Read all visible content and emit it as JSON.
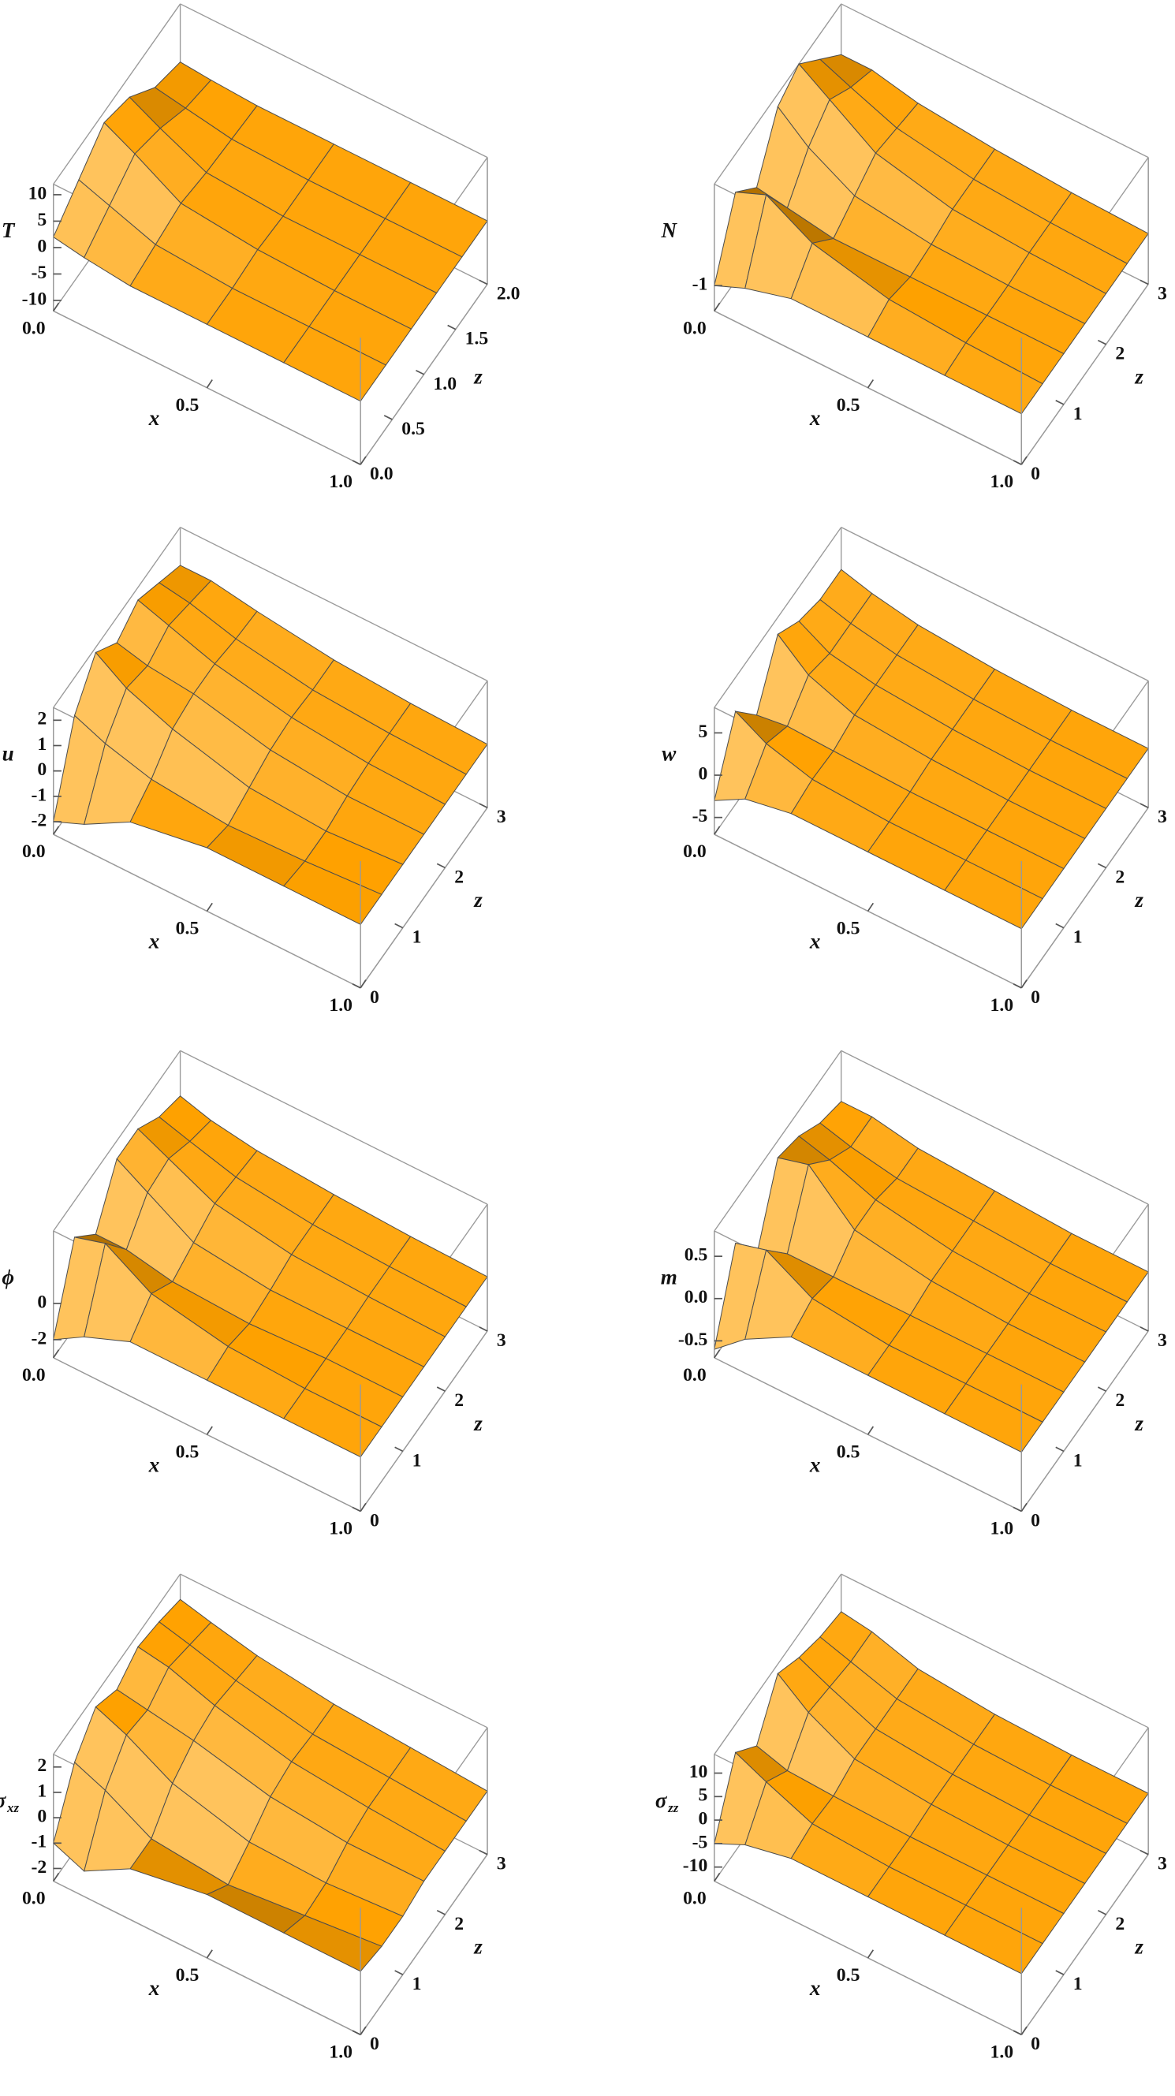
{
  "chart_data": [
    {
      "type": "surface",
      "xlabel": "x",
      "zlabel": "z",
      "vlabel": "T",
      "x": [
        0,
        0.1,
        0.25,
        0.5,
        0.75,
        1
      ],
      "z": [
        0,
        0.4,
        0.8,
        1.2,
        1.6,
        2
      ],
      "values": [
        [
          2,
          6,
          10,
          8,
          3,
          1
        ],
        [
          1,
          4,
          7,
          5,
          2,
          0.5
        ],
        [
          0,
          1,
          2,
          1,
          0.5,
          0
        ],
        [
          0,
          0,
          0.5,
          0,
          0,
          0
        ],
        [
          0,
          0,
          0,
          0,
          0,
          0
        ],
        [
          0,
          0,
          0,
          0,
          0,
          0
        ]
      ],
      "xlim": [
        0,
        1
      ],
      "zlim": [
        0,
        2
      ],
      "vlim": [
        -12,
        12
      ],
      "xticks": [
        {
          "value": 0,
          "label": "0.0"
        },
        {
          "value": 0.5,
          "label": "0.5"
        },
        {
          "value": 1,
          "label": "1.0"
        }
      ],
      "zticks": [
        {
          "value": 0,
          "label": "0.0"
        },
        {
          "value": 0.5,
          "label": "0.5"
        },
        {
          "value": 1,
          "label": "1.0"
        },
        {
          "value": 1.5,
          "label": "1.5"
        },
        {
          "value": 2,
          "label": "2.0"
        }
      ],
      "vticks": [
        10,
        5,
        0,
        -5,
        -10
      ],
      "color": "#f5a623"
    },
    {
      "type": "surface",
      "xlabel": "x",
      "zlabel": "z",
      "vlabel": "N",
      "x": [
        0,
        0.1,
        0.25,
        0.5,
        0.75,
        1
      ],
      "z": [
        0,
        0.5,
        1,
        1.5,
        2,
        2.5,
        3
      ],
      "values": [
        [
          -1,
          1.5,
          0.5,
          2.5,
          3,
          2,
          1
        ],
        [
          -0.5,
          2,
          0.3,
          1.5,
          2.2,
          1.5,
          1
        ],
        [
          0,
          1,
          0,
          0.5,
          1,
          0.8,
          0.6
        ],
        [
          0,
          0.3,
          0,
          0.1,
          0.3,
          0.3,
          0.3
        ],
        [
          0,
          0.1,
          0,
          0,
          0.1,
          0.1,
          0.1
        ],
        [
          0,
          0,
          0,
          0,
          0,
          0,
          0
        ]
      ],
      "xlim": [
        0,
        1
      ],
      "zlim": [
        0,
        3
      ],
      "vlim": [
        -2,
        3
      ],
      "xticks": [
        {
          "value": 0,
          "label": "0.0"
        },
        {
          "value": 0.5,
          "label": "0.5"
        },
        {
          "value": 1,
          "label": "1.0"
        }
      ],
      "zticks": [
        0,
        1,
        2,
        3
      ],
      "vticks": [
        -1
      ],
      "color": "#f5a623"
    },
    {
      "type": "surface",
      "xlabel": "x",
      "zlabel": "z",
      "vlabel": "u",
      "x": [
        0,
        0.1,
        0.25,
        0.5,
        0.75,
        1
      ],
      "z": [
        0,
        0.5,
        1,
        1.5,
        2,
        2.5,
        3
      ],
      "values": [
        [
          -2,
          1,
          2.3,
          1.5,
          2,
          1.5,
          1
        ],
        [
          -1.5,
          0.5,
          1.5,
          1.2,
          1.6,
          1.3,
          1
        ],
        [
          -0.5,
          0,
          0.8,
          1,
          1,
          0.8,
          0.7
        ],
        [
          0,
          -0.3,
          0,
          0.3,
          0.4,
          0.3,
          0.3
        ],
        [
          0,
          -0.2,
          -0.2,
          0,
          0.1,
          0.1,
          0.1
        ],
        [
          0,
          0,
          0,
          0,
          0,
          0,
          0
        ]
      ],
      "xlim": [
        0,
        1
      ],
      "zlim": [
        0,
        3
      ],
      "vlim": [
        -2.5,
        2.5
      ],
      "xticks": [
        {
          "value": 0,
          "label": "0.0"
        },
        {
          "value": 0.5,
          "label": "0.5"
        },
        {
          "value": 1,
          "label": "1.0"
        }
      ],
      "zticks": [
        0,
        1,
        2,
        3
      ],
      "vticks": [
        2,
        1,
        0,
        -1,
        -2
      ],
      "color": "#f5a623"
    },
    {
      "type": "surface",
      "xlabel": "x",
      "zlabel": "z",
      "vlabel": "w",
      "x": [
        0,
        0.1,
        0.25,
        0.5,
        0.75,
        1
      ],
      "z": [
        0,
        0.5,
        1,
        1.5,
        2,
        2.5,
        3
      ],
      "values": [
        [
          -3,
          4,
          0,
          6,
          4,
          3,
          3
        ],
        [
          -1,
          2,
          0.5,
          3,
          2,
          2,
          2
        ],
        [
          0,
          0.5,
          0.3,
          1,
          1,
          1,
          1
        ],
        [
          0,
          0,
          0,
          0.3,
          0.3,
          0.3,
          0.3
        ],
        [
          0,
          0,
          0,
          0,
          0,
          0,
          0
        ],
        [
          0,
          0,
          0,
          0,
          0,
          0,
          0
        ]
      ],
      "xlim": [
        0,
        1
      ],
      "zlim": [
        0,
        3
      ],
      "vlim": [
        -7,
        8
      ],
      "xticks": [
        {
          "value": 0,
          "label": "0.0"
        },
        {
          "value": 0.5,
          "label": "0.5"
        },
        {
          "value": 1,
          "label": "1.0"
        }
      ],
      "zticks": [
        0,
        1,
        2,
        3
      ],
      "vticks": [
        5,
        0,
        -5
      ],
      "color": "#f5a623"
    },
    {
      "type": "surface",
      "xlabel": "x",
      "zlabel": "z",
      "vlabel": "ϕ",
      "x": [
        0,
        0.1,
        0.25,
        0.5,
        0.75,
        1
      ],
      "z": [
        0,
        0.5,
        1,
        1.5,
        2,
        2.5,
        3
      ],
      "values": [
        [
          -2,
          2,
          0.5,
          3,
          3,
          2,
          1.5
        ],
        [
          -1,
          2.5,
          0.5,
          2,
          2.2,
          1.5,
          1
        ],
        [
          0,
          1,
          0,
          0.5,
          1,
          0.8,
          0.6
        ],
        [
          0,
          0.2,
          -0.2,
          0,
          0.3,
          0.3,
          0.3
        ],
        [
          0,
          0,
          0,
          0,
          0.1,
          0.1,
          0.1
        ],
        [
          0,
          0,
          0,
          0,
          0,
          0,
          0
        ]
      ],
      "xlim": [
        0,
        1
      ],
      "zlim": [
        0,
        3
      ],
      "vlim": [
        -3,
        4
      ],
      "xticks": [
        {
          "value": 0,
          "label": "0.0"
        },
        {
          "value": 0.5,
          "label": "0.5"
        },
        {
          "value": 1,
          "label": "1.0"
        }
      ],
      "zticks": [
        0,
        1,
        2,
        3
      ],
      "vticks": [
        0,
        -2
      ],
      "color": "#f5a623"
    },
    {
      "type": "surface",
      "xlabel": "x",
      "zlabel": "z",
      "vlabel": "m",
      "x": [
        0,
        0.1,
        0.25,
        0.5,
        0.75,
        1
      ],
      "z": [
        0,
        0.5,
        1,
        1.5,
        2,
        2.5,
        3
      ],
      "values": [
        [
          -0.6,
          0.3,
          -0.2,
          0.6,
          0.5,
          0.3,
          0.2
        ],
        [
          -0.3,
          0.4,
          0,
          0.7,
          0.4,
          0.2,
          0.2
        ],
        [
          0,
          0.1,
          0,
          0.2,
          0.2,
          0.1,
          0.1
        ],
        [
          0,
          0,
          0,
          0.05,
          0.05,
          0.05,
          0.05
        ],
        [
          0,
          0,
          0,
          0,
          0,
          0,
          0
        ],
        [
          0,
          0,
          0,
          0,
          0,
          0,
          0
        ]
      ],
      "xlim": [
        0,
        1
      ],
      "zlim": [
        0,
        3
      ],
      "vlim": [
        -0.7,
        0.8
      ],
      "xticks": [
        {
          "value": 0,
          "label": "0.0"
        },
        {
          "value": 0.5,
          "label": "0.5"
        },
        {
          "value": 1,
          "label": "1.0"
        }
      ],
      "zticks": [
        0,
        1,
        2,
        3
      ],
      "vticks": [
        0.5,
        {
          "value": 0,
          "label": "0.0"
        },
        -0.5
      ],
      "color": "#f5a623"
    },
    {
      "type": "surface",
      "xlabel": "x",
      "zlabel": "z",
      "vlabel": "σ",
      "vlabel_sub": "xz",
      "x": [
        0,
        0.1,
        0.25,
        0.5,
        0.75,
        1
      ],
      "z": [
        0,
        0.5,
        1,
        1.5,
        2,
        2.5,
        3
      ],
      "values": [
        [
          -1,
          1,
          2,
          1.5,
          2,
          1.8,
          1.5
        ],
        [
          -1.5,
          0.5,
          1.5,
          1.3,
          1.8,
          1.5,
          1.2
        ],
        [
          -0.5,
          -0.5,
          0.5,
          1,
          1.2,
          1,
          0.8
        ],
        [
          0,
          -0.8,
          -0.3,
          0.3,
          0.5,
          0.4,
          0.4
        ],
        [
          0,
          -0.5,
          -0.4,
          0,
          0.2,
          0.2,
          0.2
        ],
        [
          0,
          -0.2,
          -0.2,
          0,
          0,
          0,
          0
        ]
      ],
      "xlim": [
        0,
        1
      ],
      "zlim": [
        0,
        3
      ],
      "vlim": [
        -2.5,
        2.5
      ],
      "xticks": [
        {
          "value": 0,
          "label": "0.0"
        },
        {
          "value": 0.5,
          "label": "0.5"
        },
        {
          "value": 1,
          "label": "1.0"
        }
      ],
      "zticks": [
        0,
        1,
        2,
        3
      ],
      "vticks": [
        2,
        1,
        0,
        -1,
        -2
      ],
      "color": "#f5a623"
    },
    {
      "type": "surface",
      "xlabel": "x",
      "zlabel": "z",
      "vlabel": "σ",
      "vlabel_sub": "zz",
      "x": [
        0,
        0.1,
        0.25,
        0.5,
        0.75,
        1
      ],
      "z": [
        0,
        0.5,
        1,
        1.5,
        2,
        2.5,
        3
      ],
      "values": [
        [
          -5,
          8,
          3,
          12,
          9,
          7,
          6
        ],
        [
          -2,
          5,
          1,
          7,
          6,
          5,
          5
        ],
        [
          0,
          1,
          0.5,
          2,
          2,
          2,
          2
        ],
        [
          0,
          0,
          0,
          0.5,
          0.5,
          0.5,
          0.5
        ],
        [
          0,
          0,
          0,
          0,
          0,
          0,
          0
        ],
        [
          0,
          0,
          0,
          0,
          0,
          0,
          0
        ]
      ],
      "xlim": [
        0,
        1
      ],
      "zlim": [
        0,
        3
      ],
      "vlim": [
        -13,
        14
      ],
      "xticks": [
        {
          "value": 0,
          "label": "0.0"
        },
        {
          "value": 0.5,
          "label": "0.5"
        },
        {
          "value": 1,
          "label": "1.0"
        }
      ],
      "zticks": [
        0,
        1,
        2,
        3
      ],
      "vticks": [
        10,
        5,
        0,
        -5,
        -10
      ],
      "color": "#f5a623"
    }
  ]
}
